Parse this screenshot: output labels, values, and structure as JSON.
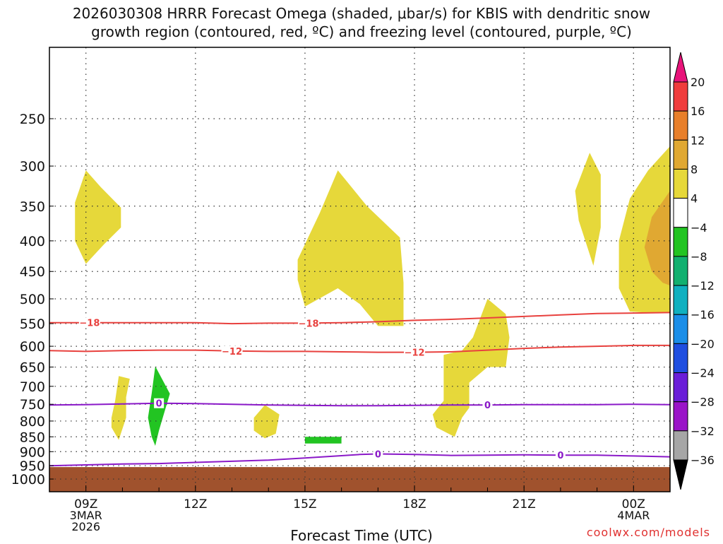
{
  "title_line1": "2026030308 HRRR Forecast Omega (shaded, μbar/s) for KBIS with dendritic snow",
  "title_line2": "growth region (contoured, red, ºC) and freezing level (contoured, purple, ºC)",
  "credit": "coolwx.com/models",
  "chart_data": {
    "type": "time-height cross-section",
    "title": "2026030308 HRRR Forecast Omega (shaded, μbar/s) for KBIS with dendritic snow growth region (contoured, red, ºC) and freezing level (contoured, purple, ºC)",
    "xlabel": "Forecast Time (UTC)",
    "ylabel": "",
    "x_range_hours_utc": [
      8.0,
      25.0
    ],
    "y_scale": "log-pressure",
    "y_range_mb": [
      1050,
      190
    ],
    "y_ticks": [
      250,
      300,
      350,
      400,
      450,
      500,
      550,
      600,
      650,
      700,
      750,
      800,
      850,
      900,
      950,
      1000
    ],
    "grid": true,
    "x_ticks": [
      {
        "hour": 9,
        "labels": [
          "09Z",
          "3MAR",
          "2026"
        ]
      },
      {
        "hour": 12,
        "labels": [
          "12Z"
        ]
      },
      {
        "hour": 15,
        "labels": [
          "15Z"
        ]
      },
      {
        "hour": 18,
        "labels": [
          "18Z"
        ]
      },
      {
        "hour": 21,
        "labels": [
          "21Z"
        ]
      },
      {
        "hour": 24,
        "labels": [
          "00Z",
          "4MAR"
        ]
      }
    ],
    "ground_top_mb": 955,
    "colorbar": {
      "labels": [
        "20",
        "16",
        "12",
        "8",
        "4",
        "−4",
        "−8",
        "−12",
        "−16",
        "−20",
        "−24",
        "−28",
        "−32",
        "−36"
      ],
      "colors": [
        "#f03c3c",
        "#e87f2a",
        "#e0a832",
        "#e6d83a",
        "#ffffff",
        "#22c422",
        "#12b070",
        "#10b0c0",
        "#1b8ee8",
        "#1f4ee0",
        "#6a1ed8",
        "#9a14c8",
        "#a6a6a6"
      ],
      "top_color": "#e8137a",
      "bottom_color": "#000000"
    },
    "contours": [
      {
        "name": "-18",
        "color": "#e8413e",
        "points": [
          [
            8.0,
            548
          ],
          [
            9.5,
            548
          ],
          [
            12,
            548
          ],
          [
            13,
            550
          ],
          [
            14,
            549
          ],
          [
            15,
            549
          ],
          [
            16,
            548
          ],
          [
            17,
            546
          ],
          [
            18,
            543
          ],
          [
            19,
            541
          ],
          [
            20,
            538
          ],
          [
            21,
            535
          ],
          [
            22,
            532
          ],
          [
            23,
            529
          ],
          [
            24,
            528
          ],
          [
            25,
            527
          ]
        ],
        "labels": [
          {
            "x": 9.1,
            "text": "−18"
          },
          {
            "x": 15.1,
            "text": "−18"
          }
        ]
      },
      {
        "name": "-12",
        "color": "#e8413e",
        "points": [
          [
            8.0,
            610
          ],
          [
            9,
            612
          ],
          [
            10,
            610
          ],
          [
            11,
            609
          ],
          [
            12,
            609
          ],
          [
            13,
            611
          ],
          [
            14,
            612
          ],
          [
            15,
            612
          ],
          [
            16,
            613
          ],
          [
            17,
            614
          ],
          [
            18,
            614
          ],
          [
            19,
            613
          ],
          [
            20,
            609
          ],
          [
            21,
            605
          ],
          [
            22,
            602
          ],
          [
            23,
            600
          ],
          [
            24,
            598
          ],
          [
            25,
            598
          ]
        ],
        "labels": [
          {
            "x": 13.0,
            "text": "−12"
          },
          {
            "x": 18.0,
            "text": "−12"
          }
        ]
      },
      {
        "name": "0 (upper)",
        "color": "#8a19c8",
        "points": [
          [
            8.0,
            752
          ],
          [
            9,
            751
          ],
          [
            10,
            749
          ],
          [
            11,
            747
          ],
          [
            12,
            748
          ],
          [
            13,
            750
          ],
          [
            14,
            752
          ],
          [
            15,
            753
          ],
          [
            16,
            754
          ],
          [
            17,
            754
          ],
          [
            18,
            753
          ],
          [
            19,
            752
          ],
          [
            20,
            752
          ],
          [
            21,
            751
          ],
          [
            22,
            751
          ],
          [
            23,
            751
          ],
          [
            24,
            750
          ],
          [
            25,
            751
          ]
        ],
        "labels": [
          {
            "x": 11.0,
            "text": "0"
          },
          {
            "x": 20.0,
            "text": "0"
          }
        ]
      },
      {
        "name": "0 (lower)",
        "color": "#8a19c8",
        "points": [
          [
            8.0,
            950
          ],
          [
            9,
            947
          ],
          [
            10,
            944
          ],
          [
            11,
            942
          ],
          [
            12,
            938
          ],
          [
            13,
            934
          ],
          [
            14,
            930
          ],
          [
            15,
            922
          ],
          [
            16,
            914
          ],
          [
            16.5,
            910
          ],
          [
            17,
            908
          ],
          [
            18,
            910
          ],
          [
            19,
            913
          ],
          [
            20,
            912
          ],
          [
            21,
            911
          ],
          [
            22,
            912
          ],
          [
            23,
            912
          ],
          [
            24,
            915
          ],
          [
            25,
            918
          ]
        ],
        "labels": [
          {
            "x": 17.0,
            "text": "0"
          },
          {
            "x": 22.0,
            "text": "0"
          }
        ]
      }
    ],
    "shaded_regions": [
      {
        "bin": "4 to 8",
        "color": "#e6d83a",
        "points": [
          [
            9.0,
            305
          ],
          [
            9.4,
            325
          ],
          [
            9.96,
            352
          ],
          [
            9.96,
            380
          ],
          [
            9.5,
            405
          ],
          [
            9.0,
            437
          ],
          [
            8.7,
            400
          ],
          [
            8.7,
            345
          ]
        ]
      },
      {
        "bin": "4 to 8",
        "color": "#e6d83a",
        "points": [
          [
            15.9,
            305
          ],
          [
            16.7,
            350
          ],
          [
            17.6,
            395
          ],
          [
            17.7,
            470
          ],
          [
            17.7,
            555
          ],
          [
            17.0,
            555
          ],
          [
            16.5,
            510
          ],
          [
            15.9,
            480
          ],
          [
            15.0,
            515
          ],
          [
            14.8,
            465
          ],
          [
            14.8,
            430
          ],
          [
            15.4,
            360
          ]
        ]
      },
      {
        "bin": "4 to 8",
        "color": "#e6d83a",
        "points": [
          [
            22.8,
            285
          ],
          [
            23.1,
            310
          ],
          [
            23.1,
            380
          ],
          [
            22.9,
            440
          ],
          [
            22.5,
            370
          ],
          [
            22.4,
            330
          ]
        ]
      },
      {
        "bin": "4 to 8",
        "color": "#e6d83a",
        "points": [
          [
            25.0,
            278
          ],
          [
            24.4,
            305
          ],
          [
            23.9,
            340
          ],
          [
            23.6,
            400
          ],
          [
            23.6,
            480
          ],
          [
            23.9,
            525
          ],
          [
            24.6,
            528
          ],
          [
            25.0,
            528
          ]
        ]
      },
      {
        "bin": "8 to 12",
        "color": "#e0a832",
        "points": [
          [
            25.0,
            330
          ],
          [
            24.5,
            365
          ],
          [
            24.3,
            410
          ],
          [
            24.5,
            450
          ],
          [
            24.8,
            470
          ],
          [
            25.0,
            475
          ]
        ]
      },
      {
        "bin": "4 to 8",
        "color": "#e6d83a",
        "points": [
          [
            20.0,
            500
          ],
          [
            20.5,
            530
          ],
          [
            20.6,
            580
          ],
          [
            20.5,
            650
          ],
          [
            20.0,
            650
          ],
          [
            19.5,
            690
          ],
          [
            19.5,
            760
          ],
          [
            19.3,
            790
          ],
          [
            19.2,
            820
          ],
          [
            19.1,
            850
          ],
          [
            18.6,
            820
          ],
          [
            18.5,
            780
          ],
          [
            18.8,
            740
          ],
          [
            18.8,
            700
          ],
          [
            18.8,
            620
          ],
          [
            19.3,
            610
          ],
          [
            19.6,
            580
          ]
        ]
      },
      {
        "bin": "4 to 8",
        "color": "#e6d83a",
        "points": [
          [
            9.9,
            673
          ],
          [
            10.2,
            680
          ],
          [
            10.1,
            730
          ],
          [
            10.1,
            790
          ],
          [
            9.9,
            860
          ],
          [
            9.7,
            820
          ],
          [
            9.7,
            790
          ],
          [
            9.8,
            740
          ]
        ]
      },
      {
        "bin": "4 to 8",
        "color": "#e6d83a",
        "points": [
          [
            13.9,
            752
          ],
          [
            14.3,
            780
          ],
          [
            14.2,
            840
          ],
          [
            13.9,
            855
          ],
          [
            13.6,
            830
          ],
          [
            13.6,
            790
          ]
        ]
      },
      {
        "bin": "-4 to -8",
        "color": "#22c422",
        "points": [
          [
            10.9,
            648
          ],
          [
            11.3,
            720
          ],
          [
            11.0,
            830
          ],
          [
            10.9,
            880
          ],
          [
            10.8,
            850
          ],
          [
            10.7,
            790
          ],
          [
            10.8,
            720
          ]
        ]
      },
      {
        "bin": "-4 to -8",
        "color": "#22c422",
        "points": [
          [
            15.0,
            850
          ],
          [
            16.0,
            850
          ],
          [
            16.0,
            872
          ],
          [
            15.0,
            872
          ]
        ]
      }
    ]
  }
}
